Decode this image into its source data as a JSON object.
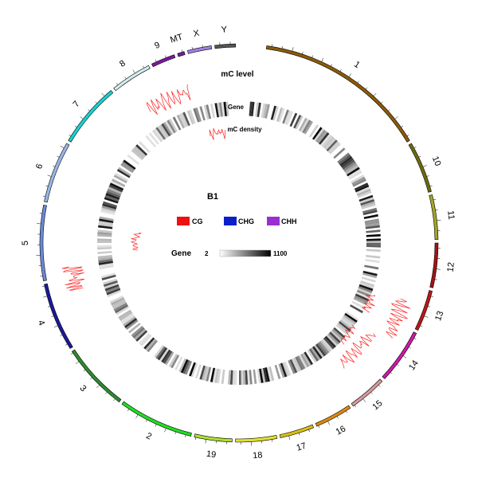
{
  "chart_data": {
    "type": "circos",
    "sample": "B1",
    "track_labels": {
      "outer": "mC level",
      "gene": "Gene",
      "density": "mC density"
    },
    "legend": [
      {
        "label": "CG",
        "color": "#ee1111"
      },
      {
        "label": "CHG",
        "color": "#0a1fc8"
      },
      {
        "label": "CHH",
        "color": "#9a2fd1"
      }
    ],
    "gene_scale": {
      "label": "Gene",
      "min": "2",
      "max": "1100"
    },
    "chromosomes": [
      {
        "name": "1",
        "color": "#8b5a08"
      },
      {
        "name": "10",
        "color": "#6b6b10"
      },
      {
        "name": "11",
        "color": "#a3a32a"
      },
      {
        "name": "12",
        "color": "#a01414"
      },
      {
        "name": "13",
        "color": "#b81818"
      },
      {
        "name": "14",
        "color": "#cc1aa6"
      },
      {
        "name": "15",
        "color": "#d89a9a"
      },
      {
        "name": "16",
        "color": "#dd8a10"
      },
      {
        "name": "17",
        "color": "#d8c010"
      },
      {
        "name": "18",
        "color": "#e0e030"
      },
      {
        "name": "19",
        "color": "#b0e030"
      },
      {
        "name": "2",
        "color": "#22dd22"
      },
      {
        "name": "3",
        "color": "#2f8a2f"
      },
      {
        "name": "4",
        "color": "#1a1a9a"
      },
      {
        "name": "5",
        "color": "#6a8ad8"
      },
      {
        "name": "6",
        "color": "#9ab6e6"
      },
      {
        "name": "7",
        "color": "#1ad0d0"
      },
      {
        "name": "8",
        "color": "#d0ecec"
      },
      {
        "name": "9",
        "color": "#7a1a9a"
      },
      {
        "name": "MT",
        "color": "#7a1a9a"
      },
      {
        "name": "X",
        "color": "#a080e0"
      },
      {
        "name": "Y",
        "color": "#555555"
      }
    ]
  }
}
